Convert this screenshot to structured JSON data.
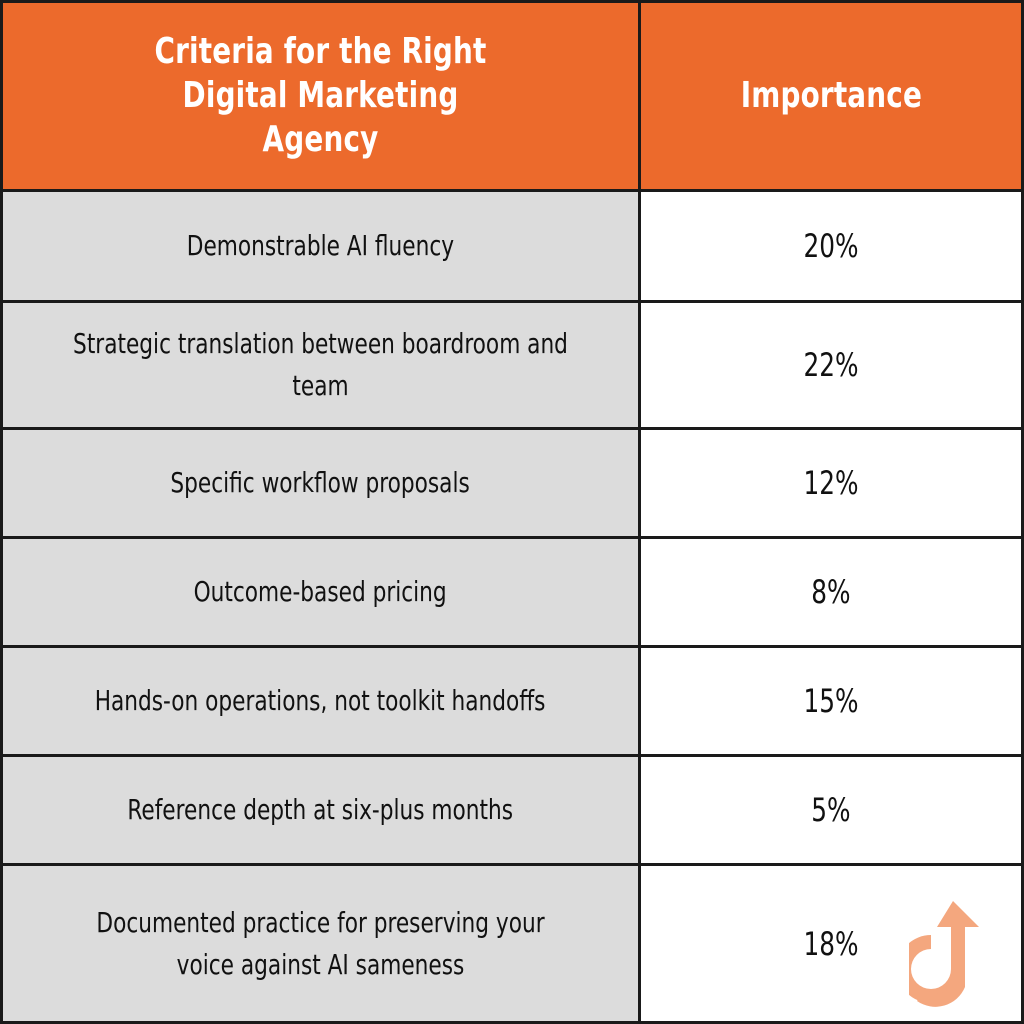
{
  "table": {
    "headers": {
      "criteria": "Criteria for the Right Digital Marketing Agency",
      "importance": "Importance"
    },
    "rows": [
      {
        "criteria": "Demonstrable AI fluency",
        "importance": "20%"
      },
      {
        "criteria": "Strategic translation between boardroom and team",
        "importance": "22%"
      },
      {
        "criteria": "Specific workflow proposals",
        "importance": "12%"
      },
      {
        "criteria": "Outcome-based pricing",
        "importance": "8%"
      },
      {
        "criteria": "Hands-on operations, not toolkit handoffs",
        "importance": "15%"
      },
      {
        "criteria": "Reference depth at six-plus months",
        "importance": "5%"
      },
      {
        "criteria": "Documented practice for preserving your voice against AI sameness",
        "importance": "18%"
      }
    ]
  },
  "colors": {
    "header_bg": "#ec6a2c",
    "criteria_bg": "#dcdcdc",
    "importance_bg": "#ffffff",
    "border": "#1a1a1a",
    "logo": "#f4a77e"
  },
  "logo": {
    "icon": "g-arrow-logo-icon"
  }
}
